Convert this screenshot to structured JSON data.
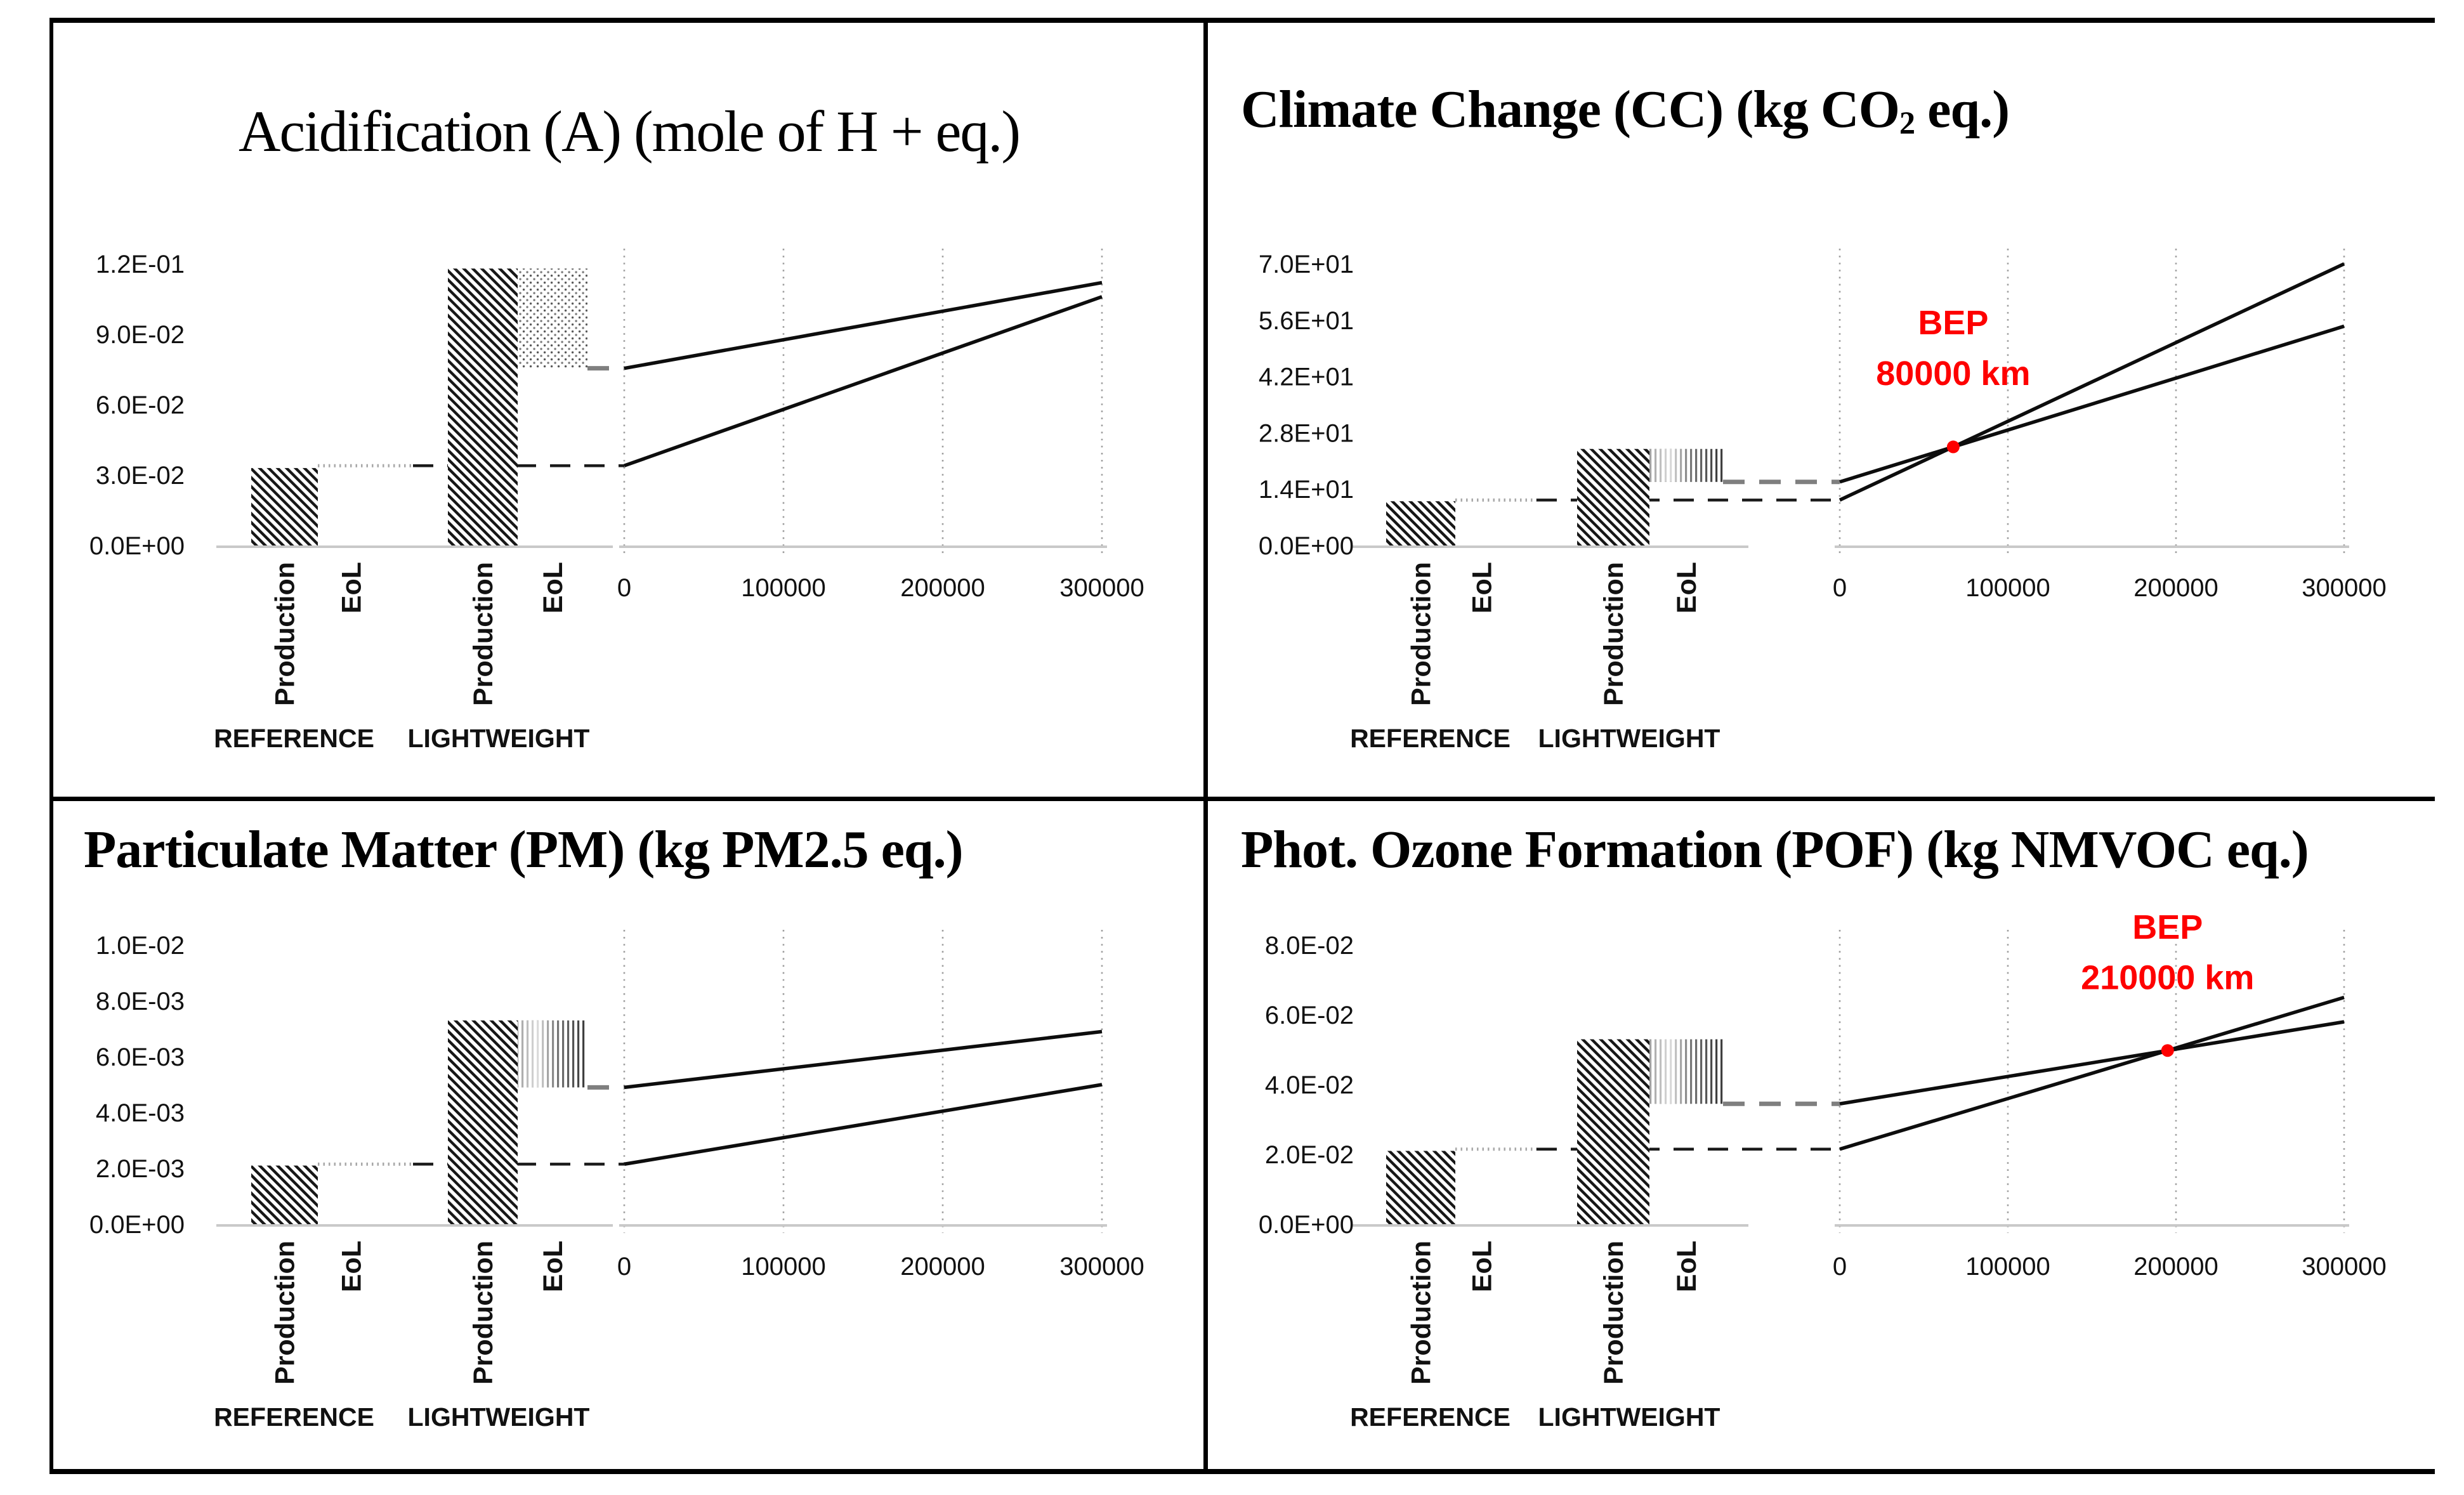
{
  "figure": {
    "description_labels": {
      "production": "Production",
      "eol": "EoL",
      "reference": "REFERENCE",
      "lightweight": "LIGHTWEIGHT"
    },
    "colors": {
      "accent_red": "#fe0000",
      "reference_dash": "#1a1a1a",
      "lightweight_dash": "#7f7f7f",
      "gridline_gray": "#9e9e9e",
      "axis_gray": "#c9c9c9",
      "bar_ink": "#161616"
    }
  },
  "chart_data": [
    {
      "type": "bar-line-breakeven",
      "panel": "top-left",
      "title": {
        "pre": "Acidification (A) (mole of H + eq.)",
        "sub": "",
        "post": ""
      },
      "ylabel": "mole of H + eq.",
      "y_tick_max": 0.12,
      "y_ticks": [
        {
          "v": 0.0,
          "label": "0.0E+00"
        },
        {
          "v": 0.03,
          "label": "3.0E-02"
        },
        {
          "v": 0.06,
          "label": "6.0E-02"
        },
        {
          "v": 0.09,
          "label": "9.0E-02"
        },
        {
          "v": 0.12,
          "label": "1.2E-01"
        }
      ],
      "x_ticks": [
        {
          "km": 0,
          "label": "0"
        },
        {
          "km": 100000,
          "label": "100000"
        },
        {
          "km": 200000,
          "label": "200000"
        },
        {
          "km": 300000,
          "label": "300000"
        }
      ],
      "eol_texture": "dots",
      "series": {
        "reference": {
          "production": 0.033,
          "eol": 0.001,
          "cumulative": 0.034,
          "use_end_300000km": 0.106
        },
        "lightweight": {
          "production": 0.118,
          "eol": -0.0425,
          "cumulative": 0.0755,
          "use_end_300000km": 0.112
        }
      },
      "bep": null
    },
    {
      "type": "bar-line-breakeven",
      "panel": "top-right",
      "title": {
        "pre": "Climate Change (CC) (kg CO",
        "sub": "2",
        "post": " eq.)"
      },
      "ylabel": "kg CO2 eq.",
      "y_tick_max": 70,
      "y_ticks": [
        {
          "v": 0,
          "label": "0.0E+00"
        },
        {
          "v": 14,
          "label": "1.4E+01"
        },
        {
          "v": 28,
          "label": "2.8E+01"
        },
        {
          "v": 42,
          "label": "4.2E+01"
        },
        {
          "v": 56,
          "label": "5.6E+01"
        },
        {
          "v": 70,
          "label": "7.0E+01"
        }
      ],
      "x_ticks": [
        {
          "km": 0,
          "label": "0"
        },
        {
          "km": 100000,
          "label": "100000"
        },
        {
          "km": 200000,
          "label": "200000"
        },
        {
          "km": 300000,
          "label": "300000"
        }
      ],
      "eol_texture": "vstripes",
      "series": {
        "reference": {
          "production": 11.0,
          "eol": 0.3,
          "cumulative": 11.3,
          "use_end_300000km": 70.0
        },
        "lightweight": {
          "production": 24.0,
          "eol": -8.2,
          "cumulative": 15.8,
          "use_end_300000km": 54.5
        }
      },
      "bep": {
        "label": "BEP",
        "km_label": "80000 km",
        "km": 80000
      }
    },
    {
      "type": "bar-line-breakeven",
      "panel": "bottom-left",
      "title": {
        "pre": "Particulate Matter (PM) (kg PM2.5 eq.)",
        "sub": "",
        "post": ""
      },
      "ylabel": "kg PM2.5 eq.",
      "y_tick_max": 0.01,
      "y_ticks": [
        {
          "v": 0.0,
          "label": "0.0E+00"
        },
        {
          "v": 0.002,
          "label": "2.0E-03"
        },
        {
          "v": 0.004,
          "label": "4.0E-03"
        },
        {
          "v": 0.006,
          "label": "6.0E-03"
        },
        {
          "v": 0.008,
          "label": "8.0E-03"
        },
        {
          "v": 0.01,
          "label": "1.0E-02"
        }
      ],
      "x_ticks": [
        {
          "km": 0,
          "label": "0"
        },
        {
          "km": 100000,
          "label": "100000"
        },
        {
          "km": 200000,
          "label": "200000"
        },
        {
          "km": 300000,
          "label": "300000"
        }
      ],
      "eol_texture": "vstripes",
      "series": {
        "reference": {
          "production": 0.0021,
          "eol": 5e-05,
          "cumulative": 0.00215,
          "use_end_300000km": 0.005
        },
        "lightweight": {
          "production": 0.0073,
          "eol": -0.0024,
          "cumulative": 0.0049,
          "use_end_300000km": 0.0069
        }
      },
      "bep": null
    },
    {
      "type": "bar-line-breakeven",
      "panel": "bottom-right",
      "title": {
        "pre": "Phot. Ozone Formation (POF) (kg NMVOC eq.)",
        "sub": "",
        "post": ""
      },
      "ylabel": "kg NMVOC eq.",
      "y_tick_max": 0.08,
      "y_ticks": [
        {
          "v": 0.0,
          "label": "0.0E+00"
        },
        {
          "v": 0.02,
          "label": "2.0E-02"
        },
        {
          "v": 0.04,
          "label": "4.0E-02"
        },
        {
          "v": 0.06,
          "label": "6.0E-02"
        },
        {
          "v": 0.08,
          "label": "8.0E-02"
        }
      ],
      "x_ticks": [
        {
          "km": 0,
          "label": "0"
        },
        {
          "km": 100000,
          "label": "100000"
        },
        {
          "km": 200000,
          "label": "200000"
        },
        {
          "km": 300000,
          "label": "300000"
        }
      ],
      "eol_texture": "vstripes",
      "series": {
        "reference": {
          "production": 0.021,
          "eol": 0.0005,
          "cumulative": 0.0215,
          "use_end_300000km": 0.065
        },
        "lightweight": {
          "production": 0.053,
          "eol": -0.0185,
          "cumulative": 0.0345,
          "use_end_300000km": 0.058
        }
      },
      "bep": {
        "label": "BEP",
        "km_label": "210000 km",
        "km": 210000
      }
    }
  ]
}
